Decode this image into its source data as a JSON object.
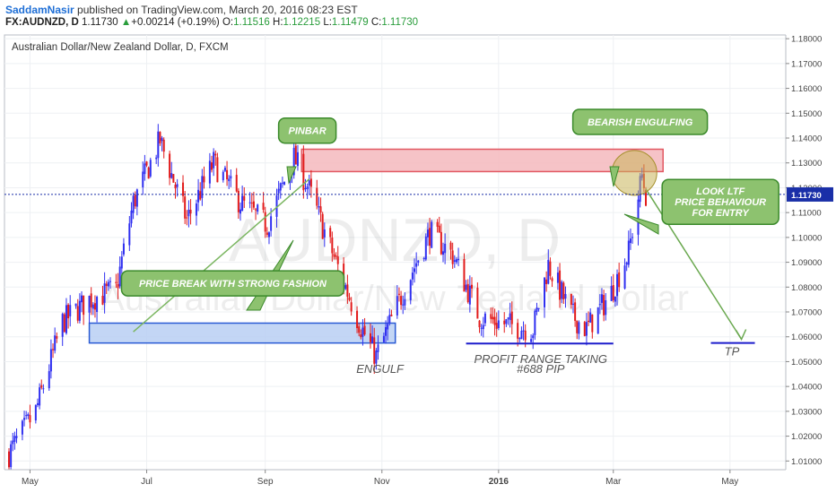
{
  "header": {
    "author": "SaddamNasir",
    "published": "published on TradingView.com, March 20, 2016 08:23 EST",
    "symbol": "FX:AUDNZD, D",
    "last": "1.11730",
    "change_arrow": "▲",
    "change": "+0.00214 (+0.19%)",
    "o_label": "O:",
    "o": "1.11516",
    "h_label": "H:",
    "h": "1.12215",
    "l_label": "L:",
    "l": "1.11479",
    "c_label": "C:",
    "c": "1.11730"
  },
  "chart_data": {
    "type": "candlestick",
    "title": "Australian Dollar/New Zealand Dollar, D, FXCM",
    "watermark_symbol": "AUDNZD, D",
    "watermark_name": "Australian Dollar/New Zealand Dollar",
    "x_ticks": [
      "May",
      "Jul",
      "Sep",
      "Nov",
      "2016",
      "Mar",
      "May"
    ],
    "y_ticks": [
      "1.18000",
      "1.17000",
      "1.16000",
      "1.15000",
      "1.14000",
      "1.13000",
      "1.12000",
      "1.11000",
      "1.10000",
      "1.09000",
      "1.08000",
      "1.07000",
      "1.06000",
      "1.05000",
      "1.04000",
      "1.03000",
      "1.02000",
      "1.01000"
    ],
    "ylim": [
      1.0065,
      1.1815
    ],
    "current_price": 1.1173,
    "current_price_label": "1.11730",
    "colors": {
      "up": "#2f2ff0",
      "down": "#e21b1b",
      "zone_supply": "#f4b9bd",
      "zone_demand": "#b9cff3",
      "label_bg": "#8dc26f",
      "label_border": "#3b8a2b"
    },
    "path_keypoints": [
      [
        "2015-04-20",
        1.013
      ],
      [
        "2015-05-04",
        1.03
      ],
      [
        "2015-05-18",
        1.066
      ],
      [
        "2015-06-01",
        1.075
      ],
      [
        "2015-06-15",
        1.079
      ],
      [
        "2015-06-24",
        1.114
      ],
      [
        "2015-07-08",
        1.139
      ],
      [
        "2015-07-22",
        1.107
      ],
      [
        "2015-08-05",
        1.13
      ],
      [
        "2015-08-19",
        1.114
      ],
      [
        "2015-09-02",
        1.105
      ],
      [
        "2015-09-16",
        1.132
      ],
      [
        "2015-09-23",
        1.121
      ],
      [
        "2015-10-07",
        1.092
      ],
      [
        "2015-10-21",
        1.064
      ],
      [
        "2015-10-29",
        1.052
      ],
      [
        "2015-11-05",
        1.065
      ],
      [
        "2015-11-12",
        1.078
      ],
      [
        "2015-11-26",
        1.102
      ],
      [
        "2015-12-08",
        1.093
      ],
      [
        "2015-12-22",
        1.068
      ],
      [
        "2016-01-05",
        1.065
      ],
      [
        "2016-01-19",
        1.063
      ],
      [
        "2016-01-27",
        1.089
      ],
      [
        "2016-02-08",
        1.069
      ],
      [
        "2016-02-16",
        1.063
      ],
      [
        "2016-02-29",
        1.078
      ],
      [
        "2016-03-09",
        1.094
      ],
      [
        "2016-03-16",
        1.125
      ],
      [
        "2016-03-18",
        1.117
      ]
    ],
    "zones": [
      {
        "name": "supply-zone",
        "x1": "2015-09-20",
        "x2": "2016-03-27",
        "y1": 1.1265,
        "y2": 1.1355
      },
      {
        "name": "demand-zone",
        "x1": "2015-06-01",
        "x2": "2015-11-08",
        "y1": 1.0575,
        "y2": 1.0655
      }
    ],
    "lines": [
      {
        "name": "range-low-line",
        "x1": "2015-12-15",
        "x2": "2016-03-01",
        "y": 1.0573,
        "color": "#1c1ccc"
      },
      {
        "name": "target-line",
        "x1": "2016-04-21",
        "x2": "2016-05-14",
        "y": 1.0575,
        "color": "#1c1ccc"
      },
      {
        "name": "breakout-trendline",
        "x1": "2015-06-24",
        "x2": "2015-09-24",
        "y1": 1.062,
        "y2": 1.1235,
        "color": "#7bb661"
      },
      {
        "name": "projection-line",
        "x1": "2016-03-18",
        "x2": "2016-05-07",
        "y1": 1.1195,
        "y2": 1.059,
        "color": "#6aa84f"
      }
    ],
    "circle": {
      "name": "engulfing-circle",
      "x": "2016-03-12",
      "y": 1.126,
      "r": 25
    },
    "annotations": [
      {
        "name": "pinbar",
        "text": "PINBAR",
        "lines": [
          "PINBAR"
        ],
        "x": "2015-09-23",
        "y": 1.143
      },
      {
        "name": "bearish-engulfing",
        "text": "BEARISH ENGULFING",
        "lines": [
          "BEARISH ENGULFING"
        ],
        "x": "2016-03-15",
        "y": 1.1465
      },
      {
        "name": "look-ltf",
        "text": "LOOK LTF PRICE BEHAVIOUR FOR ENTRY",
        "lines": [
          "LOOK LTF",
          "PRICE BEHAVIOUR",
          "FOR ENTRY"
        ],
        "x": "2016-04-26",
        "y": 1.1143
      },
      {
        "name": "price-break",
        "text": "PRICE BREAK WITH STRONG FASHION",
        "lines": [
          "PRICE BREAK WITH STRONG FASHION"
        ],
        "x": "2015-08-15",
        "y": 1.0815
      }
    ],
    "text_labels": [
      {
        "name": "engulf-label",
        "text": "ENGULF",
        "x": "2015-10-31",
        "y": 1.0455
      },
      {
        "name": "profit-range-label",
        "text": "PROFIT RANGE TAKING",
        "x": "2016-01-23",
        "y": 1.0495
      },
      {
        "name": "pip-label",
        "text": "#688 PIP",
        "x": "2016-01-23",
        "y": 1.0455
      },
      {
        "name": "tp-label",
        "text": "TP",
        "x": "2016-05-02",
        "y": 1.0525
      }
    ]
  }
}
